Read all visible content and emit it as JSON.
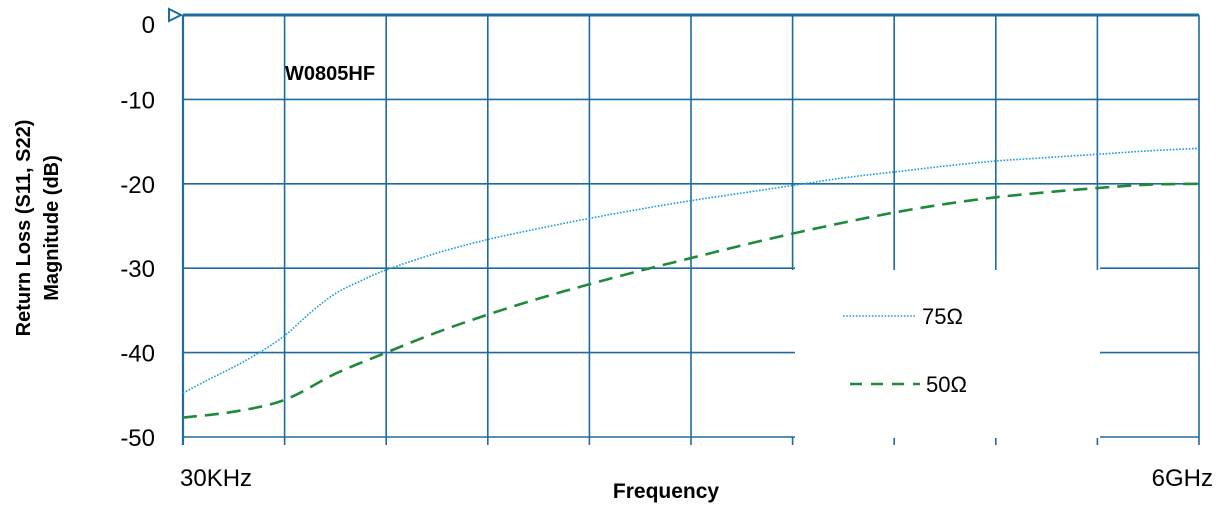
{
  "chart_data": {
    "type": "line",
    "title": "W0805HF",
    "xlabel": "Frequency",
    "ylabel_line1": "Return Loss (S11, S22)",
    "ylabel_line2": "Magnitude (dB)",
    "x_tick_labels": [
      "30KHz",
      "6GHz"
    ],
    "ylim": [
      -50,
      0
    ],
    "yticks": [
      0,
      -10,
      -20,
      -30,
      -40,
      -50
    ],
    "x_divisions": 10,
    "grid": true,
    "legend_placement": "lower-right",
    "series": [
      {
        "name": "75Ω",
        "style": "dotted",
        "color": "#1a9bd7",
        "x": [
          0,
          0.25,
          0.5,
          0.75,
          1.0,
          1.25,
          1.5,
          1.75,
          2.0,
          2.5,
          3.0,
          3.5,
          4.0,
          4.5,
          5.0,
          5.5,
          6.0,
          6.5,
          7.0,
          7.5,
          8.0,
          8.5,
          9.0,
          9.5,
          10.0
        ],
        "values": [
          -44.8,
          -43.2,
          -41.7,
          -40.0,
          -38.0,
          -35.3,
          -33.0,
          -31.5,
          -30.2,
          -28.2,
          -26.6,
          -25.3,
          -24.1,
          -23.0,
          -22.0,
          -21.1,
          -20.2,
          -19.3,
          -18.6,
          -17.9,
          -17.3,
          -16.9,
          -16.5,
          -16.1,
          -15.8
        ]
      },
      {
        "name": "50Ω",
        "style": "dashed",
        "color": "#1f8a3c",
        "x": [
          0,
          0.5,
          1.0,
          1.5,
          2.0,
          2.5,
          3.0,
          3.5,
          4.0,
          4.5,
          5.0,
          5.5,
          6.0,
          6.5,
          7.0,
          7.5,
          8.0,
          8.5,
          9.0,
          9.5,
          10.0
        ],
        "values": [
          -47.7,
          -47.0,
          -45.6,
          -42.5,
          -40.0,
          -37.6,
          -35.5,
          -33.6,
          -31.9,
          -30.3,
          -28.8,
          -27.3,
          -25.9,
          -24.6,
          -23.4,
          -22.4,
          -21.6,
          -21.0,
          -20.5,
          -20.1,
          -20.0
        ]
      }
    ],
    "colors": {
      "grid": "#1f6aa0",
      "text": "#000000"
    }
  }
}
